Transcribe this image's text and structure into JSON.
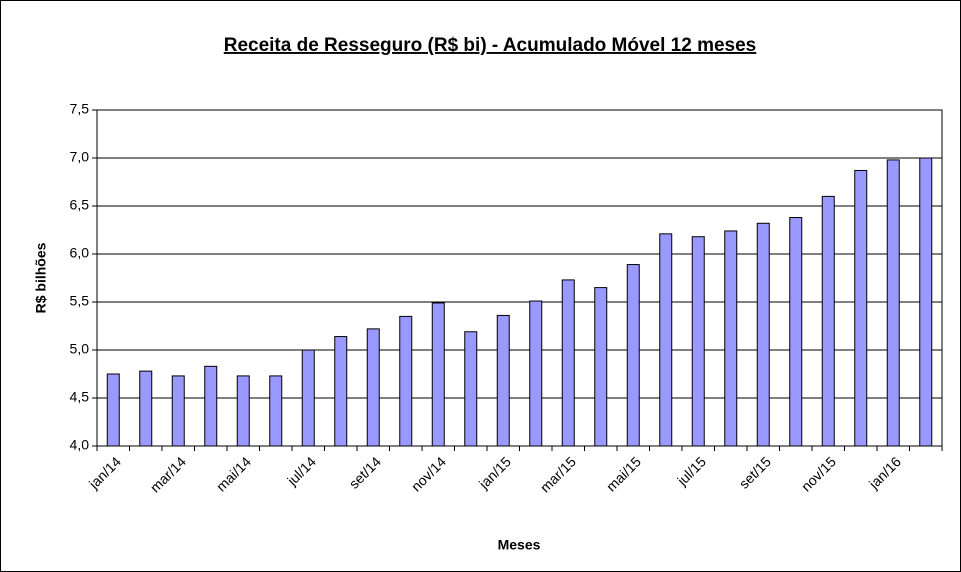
{
  "chart_data": {
    "type": "bar",
    "title": "Receita de Resseguro (R$ bi) - Acumulado Móvel 12 meses",
    "x_label": "Meses",
    "y_label": "R$ bilhões",
    "categories": [
      "jan/14",
      null,
      "mar/14",
      null,
      "mai/14",
      null,
      "jul/14",
      null,
      "set/14",
      null,
      "nov/14",
      null,
      "jan/15",
      null,
      "mar/15",
      null,
      "mai/15",
      null,
      "jul/15",
      null,
      "set/15",
      null,
      "nov/15",
      null,
      "jan/16",
      null
    ],
    "values": [
      4.75,
      4.78,
      4.73,
      4.83,
      4.73,
      4.73,
      5.0,
      5.14,
      5.22,
      5.35,
      5.49,
      5.19,
      5.36,
      5.51,
      5.73,
      5.65,
      5.89,
      6.21,
      6.18,
      6.24,
      6.32,
      6.38,
      6.6,
      6.87,
      6.98,
      7.0
    ],
    "color": "#9999ff",
    "ylim": [
      4.0,
      7.5
    ],
    "yticks": [
      {
        "value": 4.0,
        "label": "4,0"
      },
      {
        "value": 4.5,
        "label": "4,5"
      },
      {
        "value": 5.0,
        "label": "5,0"
      },
      {
        "value": 5.5,
        "label": "5,5"
      },
      {
        "value": 6.0,
        "label": "6,0"
      },
      {
        "value": 6.5,
        "label": "6,5"
      },
      {
        "value": 7.0,
        "label": "7,0"
      },
      {
        "value": 7.5,
        "label": "7,5"
      }
    ],
    "grid": true
  }
}
